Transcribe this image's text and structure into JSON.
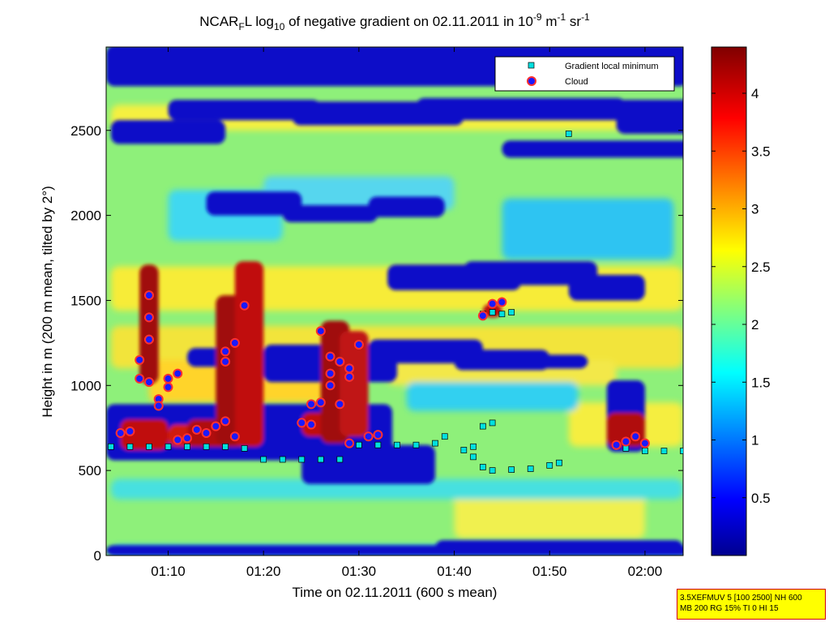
{
  "chart_data": {
    "type": "heatmap",
    "title": {
      "p1": "NCAR",
      "p1_sub": "F",
      "p2": "L log",
      "p2_sub": "10",
      "p3": " of negative gradient on 02.11.2011 in 10",
      "p3_sup": "-9",
      "p4": " m",
      "p4_sup": "-1",
      "p5": " sr",
      "p5_sup": "-1"
    },
    "ylabel": "Height in m (200 m mean, tilted by 2°)",
    "xlabel": "Time on 02.11.2011 (600 s mean)",
    "xlim": [
      "01:03:30",
      "02:04:00"
    ],
    "ylim": [
      0,
      2990
    ],
    "x_ticks": [
      "01:10",
      "01:20",
      "01:30",
      "01:40",
      "01:50",
      "02:00"
    ],
    "y_ticks": [
      "0",
      "500",
      "1000",
      "1500",
      "2000",
      "2500"
    ],
    "colorbar": {
      "min": 0,
      "max": 4.4,
      "ticks": [
        "0.5",
        "1",
        "1.5",
        "2",
        "2.5",
        "3",
        "3.5",
        "4"
      ],
      "colormap": "jet"
    },
    "legend": {
      "position": "top-right",
      "entries": [
        {
          "label": "Gradient local minimum",
          "marker": "square",
          "color": "#00e0e0"
        },
        {
          "label": "Cloud",
          "marker": "circle",
          "color": "#1a1aff",
          "edge": "#ff3030"
        }
      ]
    },
    "series": [
      {
        "name": "Gradient local minimum",
        "points": [
          [
            "01:04",
            640
          ],
          [
            "01:06",
            640
          ],
          [
            "01:08",
            640
          ],
          [
            "01:10",
            640
          ],
          [
            "01:12",
            640
          ],
          [
            "01:14",
            640
          ],
          [
            "01:16",
            640
          ],
          [
            "01:18",
            630
          ],
          [
            "01:20",
            565
          ],
          [
            "01:22",
            565
          ],
          [
            "01:24",
            565
          ],
          [
            "01:26",
            565
          ],
          [
            "01:28",
            565
          ],
          [
            "01:30",
            650
          ],
          [
            "01:32",
            650
          ],
          [
            "01:34",
            650
          ],
          [
            "01:36",
            650
          ],
          [
            "01:38",
            660
          ],
          [
            "01:39",
            700
          ],
          [
            "01:41",
            620
          ],
          [
            "01:42",
            580
          ],
          [
            "01:43",
            520
          ],
          [
            "01:44",
            500
          ],
          [
            "01:46",
            505
          ],
          [
            "01:48",
            510
          ],
          [
            "01:50",
            530
          ],
          [
            "01:51",
            545
          ],
          [
            "01:42",
            640
          ],
          [
            "01:43",
            760
          ],
          [
            "01:44",
            780
          ],
          [
            "01:43",
            1420
          ],
          [
            "01:44",
            1430
          ],
          [
            "01:45",
            1420
          ],
          [
            "01:46",
            1430
          ],
          [
            "01:52",
            2480
          ],
          [
            "01:58",
            630
          ],
          [
            "02:00",
            615
          ],
          [
            "02:02",
            615
          ],
          [
            "02:04",
            615
          ]
        ]
      },
      {
        "name": "Cloud",
        "points": [
          [
            "01:05",
            720
          ],
          [
            "01:06",
            730
          ],
          [
            "01:07",
            1040
          ],
          [
            "01:07",
            1150
          ],
          [
            "01:08",
            1270
          ],
          [
            "01:08",
            1400
          ],
          [
            "01:08",
            1530
          ],
          [
            "01:08",
            1020
          ],
          [
            "01:09",
            920
          ],
          [
            "01:09",
            880
          ],
          [
            "01:10",
            990
          ],
          [
            "01:10",
            1040
          ],
          [
            "01:11",
            1070
          ],
          [
            "01:11",
            680
          ],
          [
            "01:12",
            690
          ],
          [
            "01:13",
            740
          ],
          [
            "01:14",
            720
          ],
          [
            "01:15",
            760
          ],
          [
            "01:16",
            790
          ],
          [
            "01:16",
            1200
          ],
          [
            "01:16",
            1140
          ],
          [
            "01:17",
            1250
          ],
          [
            "01:17",
            700
          ],
          [
            "01:18",
            1470
          ],
          [
            "01:24",
            780
          ],
          [
            "01:25",
            770
          ],
          [
            "01:25",
            890
          ],
          [
            "01:26",
            900
          ],
          [
            "01:26",
            1320
          ],
          [
            "01:27",
            1170
          ],
          [
            "01:27",
            1070
          ],
          [
            "01:27",
            1000
          ],
          [
            "01:28",
            1140
          ],
          [
            "01:28",
            890
          ],
          [
            "01:29",
            1100
          ],
          [
            "01:29",
            1050
          ],
          [
            "01:30",
            1240
          ],
          [
            "01:29",
            660
          ],
          [
            "01:31",
            700
          ],
          [
            "01:32",
            710
          ],
          [
            "01:43",
            1410
          ],
          [
            "01:44",
            1480
          ],
          [
            "01:45",
            1490
          ],
          [
            "01:57",
            650
          ],
          [
            "01:58",
            670
          ],
          [
            "01:59",
            700
          ],
          [
            "02:00",
            660
          ]
        ]
      }
    ]
  },
  "info_box": {
    "line1": "3.5XEFMUV 5 [100 2500] NH 600",
    "line2": "MB 200 RG 15% TI 0 HI 15"
  }
}
